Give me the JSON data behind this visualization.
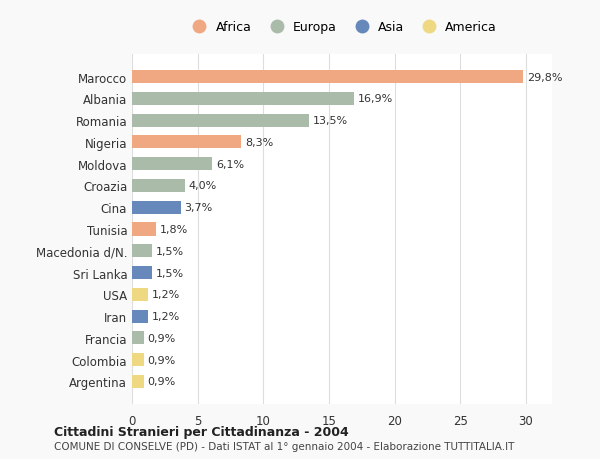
{
  "countries": [
    "Marocco",
    "Albania",
    "Romania",
    "Nigeria",
    "Moldova",
    "Croazia",
    "Cina",
    "Tunisia",
    "Macedonia d/N.",
    "Sri Lanka",
    "USA",
    "Iran",
    "Francia",
    "Colombia",
    "Argentina"
  ],
  "values": [
    29.8,
    16.9,
    13.5,
    8.3,
    6.1,
    4.0,
    3.7,
    1.8,
    1.5,
    1.5,
    1.2,
    1.2,
    0.9,
    0.9,
    0.9
  ],
  "labels": [
    "29,8%",
    "16,9%",
    "13,5%",
    "8,3%",
    "6,1%",
    "4,0%",
    "3,7%",
    "1,8%",
    "1,5%",
    "1,5%",
    "1,2%",
    "1,2%",
    "0,9%",
    "0,9%",
    "0,9%"
  ],
  "continents": [
    "Africa",
    "Europa",
    "Europa",
    "Africa",
    "Europa",
    "Europa",
    "Asia",
    "Africa",
    "Europa",
    "Asia",
    "America",
    "Asia",
    "Europa",
    "America",
    "America"
  ],
  "colors": {
    "Africa": "#F0A882",
    "Europa": "#AABBAA",
    "Asia": "#6688BB",
    "America": "#EED882"
  },
  "title1": "Cittadini Stranieri per Cittadinanza - 2004",
  "title2": "COMUNE DI CONSELVE (PD) - Dati ISTAT al 1° gennaio 2004 - Elaborazione TUTTITALIA.IT",
  "xlim": [
    0,
    32
  ],
  "xticks": [
    0,
    5,
    10,
    15,
    20,
    25,
    30
  ],
  "background_color": "#f9f9f9",
  "bar_background": "#ffffff",
  "legend_order": [
    "Africa",
    "Europa",
    "Asia",
    "America"
  ]
}
